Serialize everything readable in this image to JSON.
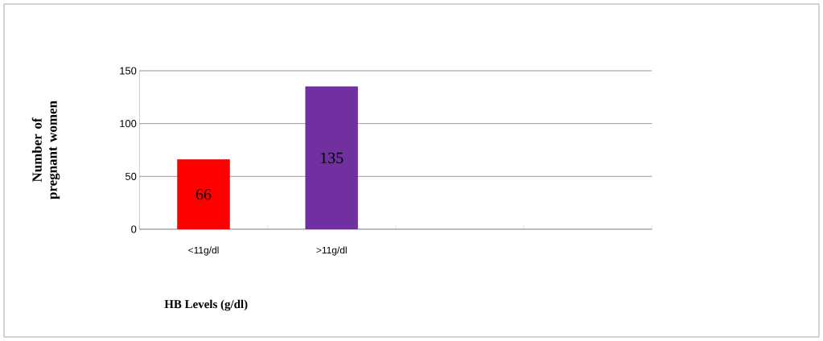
{
  "chart_data": {
    "type": "bar",
    "xlabel": "HB Levels (g/dl)",
    "ylabel": "Number of pregnant women",
    "categories": [
      "<11g/dl",
      ">11g/dl",
      null,
      null
    ],
    "values": [
      66,
      135,
      null,
      null
    ],
    "colors": [
      "#ff0000",
      "#7030a0",
      "#ff0000",
      "#7030a0"
    ],
    "ylim": [
      0,
      150
    ],
    "yticks": [
      0,
      50,
      100,
      150
    ],
    "grid": "y",
    "data_labels": true
  }
}
